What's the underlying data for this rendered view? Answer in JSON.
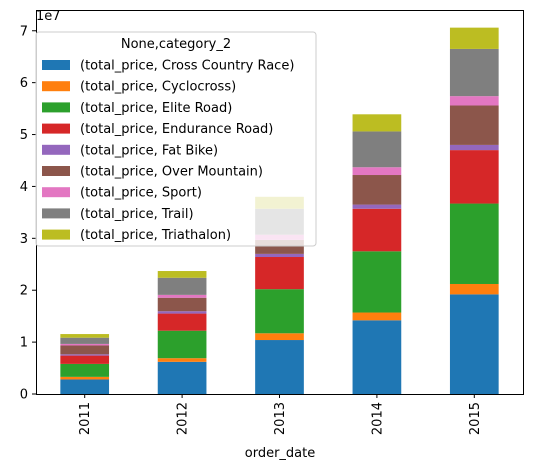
{
  "chart_data": {
    "type": "bar",
    "stacked": true,
    "categories": [
      "2011",
      "2012",
      "2013",
      "2014",
      "2015"
    ],
    "xlabel": "order_date",
    "ylabel": "",
    "y_offset_label": "1e7",
    "ylim": [
      0,
      74000000
    ],
    "yticks": [
      0,
      10000000,
      20000000,
      30000000,
      40000000,
      50000000,
      60000000,
      70000000
    ],
    "ytick_labels": [
      "0",
      "1",
      "2",
      "3",
      "4",
      "5",
      "6",
      "7"
    ],
    "legend": {
      "title": "None,category_2",
      "position": "top-left"
    },
    "series": [
      {
        "name": "(total_price, Cross Country Race)",
        "color": "#1f77b4",
        "values": [
          2800000,
          6200000,
          10400000,
          14200000,
          19200000
        ]
      },
      {
        "name": "(total_price, Cyclocross)",
        "color": "#ff7f0e",
        "values": [
          500000,
          700000,
          1300000,
          1500000,
          2000000
        ]
      },
      {
        "name": "(total_price, Elite Road)",
        "color": "#2ca02c",
        "values": [
          2500000,
          5300000,
          8500000,
          11800000,
          15500000
        ]
      },
      {
        "name": "(total_price, Endurance Road)",
        "color": "#d62728",
        "values": [
          1600000,
          3300000,
          6200000,
          8200000,
          10300000
        ]
      },
      {
        "name": "(total_price, Fat Bike)",
        "color": "#9467bd",
        "values": [
          250000,
          450000,
          600000,
          800000,
          1000000
        ]
      },
      {
        "name": "(total_price, Over Mountain)",
        "color": "#8c564b",
        "values": [
          1700000,
          2600000,
          2700000,
          5700000,
          7600000
        ]
      },
      {
        "name": "(total_price, Sport)",
        "color": "#e377c2",
        "values": [
          300000,
          550000,
          1000000,
          1500000,
          1800000
        ]
      },
      {
        "name": "(total_price, Trail)",
        "color": "#7f7f7f",
        "values": [
          1200000,
          3300000,
          5000000,
          6900000,
          9100000
        ]
      },
      {
        "name": "(total_price, Triathalon)",
        "color": "#bcbd22",
        "values": [
          700000,
          1300000,
          2300000,
          3300000,
          4100000
        ]
      }
    ]
  }
}
